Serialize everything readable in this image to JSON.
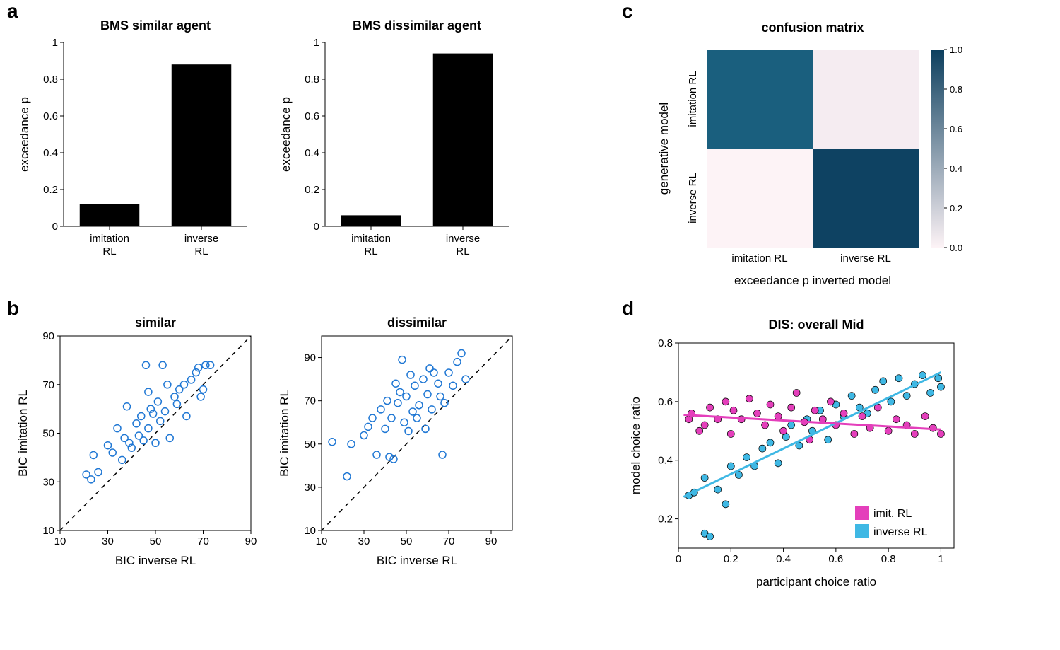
{
  "panel_letters": {
    "a": "a",
    "b": "b",
    "c": "c",
    "d": "d"
  },
  "panel_a": {
    "left": {
      "type": "bar",
      "title": "BMS similar agent",
      "ylabel": "exceedance p",
      "ylim": [
        0,
        1
      ],
      "yticks": [
        0,
        0.2,
        0.4,
        0.6,
        0.8,
        1
      ],
      "categories": [
        "imitation\nRL",
        "inverse\nRL"
      ],
      "values": [
        0.12,
        0.88
      ],
      "bar_color": "#000000",
      "bar_width": 0.65,
      "background": "#ffffff"
    },
    "right": {
      "type": "bar",
      "title": "BMS dissimilar agent",
      "ylabel": "exceedance p",
      "ylim": [
        0,
        1
      ],
      "yticks": [
        0,
        0.2,
        0.4,
        0.6,
        0.8,
        1
      ],
      "categories": [
        "imitation\nRL",
        "inverse\nRL"
      ],
      "values": [
        0.06,
        0.94
      ],
      "bar_color": "#000000",
      "bar_width": 0.65,
      "background": "#ffffff"
    }
  },
  "panel_b": {
    "left": {
      "type": "scatter",
      "title": "similar",
      "xlabel": "BIC inverse RL",
      "ylabel": "BIC imitation RL",
      "xlim": [
        10,
        90
      ],
      "ylim": [
        10,
        90
      ],
      "xticks": [
        10,
        30,
        50,
        70,
        90
      ],
      "yticks": [
        10,
        30,
        50,
        70,
        90
      ],
      "marker_color": "#1f77d4",
      "marker_size": 5,
      "diagonal": true,
      "points": [
        [
          21,
          33
        ],
        [
          23,
          31
        ],
        [
          24,
          41
        ],
        [
          26,
          34
        ],
        [
          30,
          45
        ],
        [
          32,
          42
        ],
        [
          34,
          52
        ],
        [
          36,
          39
        ],
        [
          37,
          48
        ],
        [
          38,
          61
        ],
        [
          39,
          46
        ],
        [
          40,
          44
        ],
        [
          42,
          54
        ],
        [
          43,
          49
        ],
        [
          44,
          57
        ],
        [
          45,
          47
        ],
        [
          46,
          78
        ],
        [
          47,
          52
        ],
        [
          48,
          60
        ],
        [
          49,
          58
        ],
        [
          50,
          46
        ],
        [
          51,
          63
        ],
        [
          52,
          55
        ],
        [
          53,
          78
        ],
        [
          54,
          59
        ],
        [
          56,
          48
        ],
        [
          58,
          65
        ],
        [
          59,
          62
        ],
        [
          60,
          68
        ],
        [
          62,
          70
        ],
        [
          63,
          57
        ],
        [
          65,
          72
        ],
        [
          67,
          75
        ],
        [
          68,
          77
        ],
        [
          70,
          68
        ],
        [
          71,
          78
        ],
        [
          69,
          65
        ],
        [
          73,
          78
        ],
        [
          55,
          70
        ],
        [
          47,
          67
        ]
      ]
    },
    "right": {
      "type": "scatter",
      "title": "dissimilar",
      "xlabel": "BIC inverse RL",
      "ylabel": "BIC imitation RL",
      "xlim": [
        10,
        100
      ],
      "ylim": [
        10,
        100
      ],
      "xticks": [
        10,
        30,
        50,
        70,
        90
      ],
      "yticks": [
        10,
        30,
        50,
        70,
        90
      ],
      "marker_color": "#1f77d4",
      "marker_size": 5,
      "diagonal": true,
      "points": [
        [
          15,
          51
        ],
        [
          22,
          35
        ],
        [
          24,
          50
        ],
        [
          30,
          54
        ],
        [
          32,
          58
        ],
        [
          34,
          62
        ],
        [
          36,
          45
        ],
        [
          38,
          66
        ],
        [
          40,
          57
        ],
        [
          41,
          70
        ],
        [
          42,
          44
        ],
        [
          43,
          62
        ],
        [
          44,
          43
        ],
        [
          45,
          78
        ],
        [
          46,
          69
        ],
        [
          47,
          74
        ],
        [
          48,
          89
        ],
        [
          49,
          60
        ],
        [
          50,
          72
        ],
        [
          52,
          82
        ],
        [
          53,
          65
        ],
        [
          54,
          77
        ],
        [
          56,
          68
        ],
        [
          58,
          80
        ],
        [
          60,
          73
        ],
        [
          62,
          66
        ],
        [
          63,
          83
        ],
        [
          65,
          78
        ],
        [
          67,
          45
        ],
        [
          68,
          69
        ],
        [
          70,
          83
        ],
        [
          72,
          77
        ],
        [
          74,
          88
        ],
        [
          76,
          92
        ],
        [
          78,
          80
        ],
        [
          59,
          57
        ],
        [
          61,
          85
        ],
        [
          55,
          62
        ],
        [
          51,
          56
        ],
        [
          66,
          72
        ]
      ]
    }
  },
  "panel_c": {
    "type": "heatmap",
    "title": "confusion matrix",
    "xlabel": "exceedance p inverted model",
    "ylabel": "generative model",
    "row_labels": [
      "imitation RL",
      "inverse RL"
    ],
    "col_labels": [
      "imitation RL",
      "inverse RL"
    ],
    "values": [
      [
        0.87,
        0.07
      ],
      [
        0.04,
        0.96
      ]
    ],
    "colorbar": {
      "vmin": 0.0,
      "vmax": 1.0,
      "ticks": [
        0.0,
        0.2,
        0.4,
        0.6,
        0.8,
        1.0
      ]
    },
    "colormap_low": "#fdf3f6",
    "colormap_high": "#0c3f5e",
    "cell_colors": [
      [
        "#1a5f7e",
        "#f5ecf1"
      ],
      [
        "#fdf3f6",
        "#0e4262"
      ]
    ]
  },
  "panel_d": {
    "type": "scatter-fit",
    "title": "DIS: overall Mid",
    "xlabel": "participant choice ratio",
    "ylabel": "model choice ratio",
    "xlim": [
      0,
      1.05
    ],
    "ylim": [
      0.1,
      0.8
    ],
    "xticks": [
      0,
      0.2,
      0.4,
      0.6,
      0.8,
      1
    ],
    "yticks": [
      0.2,
      0.4,
      0.6,
      0.8
    ],
    "series": {
      "imit": {
        "label": "imit. RL",
        "color": "#e43fbb",
        "marker_size": 5,
        "line": {
          "x0": 0.02,
          "y0": 0.555,
          "x1": 1.0,
          "y1": 0.505,
          "width": 3
        },
        "points": [
          [
            0.04,
            0.54
          ],
          [
            0.05,
            0.56
          ],
          [
            0.08,
            0.5
          ],
          [
            0.1,
            0.52
          ],
          [
            0.12,
            0.58
          ],
          [
            0.15,
            0.54
          ],
          [
            0.18,
            0.6
          ],
          [
            0.2,
            0.49
          ],
          [
            0.21,
            0.57
          ],
          [
            0.24,
            0.54
          ],
          [
            0.27,
            0.61
          ],
          [
            0.3,
            0.56
          ],
          [
            0.33,
            0.52
          ],
          [
            0.35,
            0.59
          ],
          [
            0.38,
            0.55
          ],
          [
            0.4,
            0.5
          ],
          [
            0.43,
            0.58
          ],
          [
            0.45,
            0.63
          ],
          [
            0.48,
            0.53
          ],
          [
            0.5,
            0.47
          ],
          [
            0.52,
            0.57
          ],
          [
            0.55,
            0.54
          ],
          [
            0.58,
            0.6
          ],
          [
            0.6,
            0.52
          ],
          [
            0.63,
            0.56
          ],
          [
            0.67,
            0.49
          ],
          [
            0.7,
            0.55
          ],
          [
            0.73,
            0.51
          ],
          [
            0.76,
            0.58
          ],
          [
            0.8,
            0.5
          ],
          [
            0.83,
            0.54
          ],
          [
            0.87,
            0.52
          ],
          [
            0.9,
            0.49
          ],
          [
            0.94,
            0.55
          ],
          [
            0.97,
            0.51
          ],
          [
            1.0,
            0.49
          ]
        ]
      },
      "inverse": {
        "label": "inverse RL",
        "color": "#3fb8e4",
        "marker_size": 5,
        "line": {
          "x0": 0.02,
          "y0": 0.275,
          "x1": 1.0,
          "y1": 0.7,
          "width": 3
        },
        "points": [
          [
            0.04,
            0.28
          ],
          [
            0.06,
            0.29
          ],
          [
            0.1,
            0.15
          ],
          [
            0.12,
            0.14
          ],
          [
            0.15,
            0.3
          ],
          [
            0.18,
            0.25
          ],
          [
            0.1,
            0.34
          ],
          [
            0.2,
            0.38
          ],
          [
            0.23,
            0.35
          ],
          [
            0.26,
            0.41
          ],
          [
            0.29,
            0.38
          ],
          [
            0.32,
            0.44
          ],
          [
            0.35,
            0.46
          ],
          [
            0.38,
            0.39
          ],
          [
            0.41,
            0.48
          ],
          [
            0.43,
            0.52
          ],
          [
            0.46,
            0.45
          ],
          [
            0.49,
            0.54
          ],
          [
            0.51,
            0.5
          ],
          [
            0.54,
            0.57
          ],
          [
            0.57,
            0.47
          ],
          [
            0.6,
            0.59
          ],
          [
            0.63,
            0.55
          ],
          [
            0.66,
            0.62
          ],
          [
            0.69,
            0.58
          ],
          [
            0.72,
            0.56
          ],
          [
            0.75,
            0.64
          ],
          [
            0.78,
            0.67
          ],
          [
            0.81,
            0.6
          ],
          [
            0.84,
            0.68
          ],
          [
            0.87,
            0.62
          ],
          [
            0.9,
            0.66
          ],
          [
            0.93,
            0.69
          ],
          [
            0.96,
            0.63
          ],
          [
            0.99,
            0.68
          ],
          [
            1.0,
            0.65
          ]
        ]
      }
    },
    "legend_position": "bottom-right"
  },
  "fonts": {
    "title_pt": 18,
    "label_pt": 17,
    "tick_pt": 15,
    "panel_letter_pt": 28
  }
}
